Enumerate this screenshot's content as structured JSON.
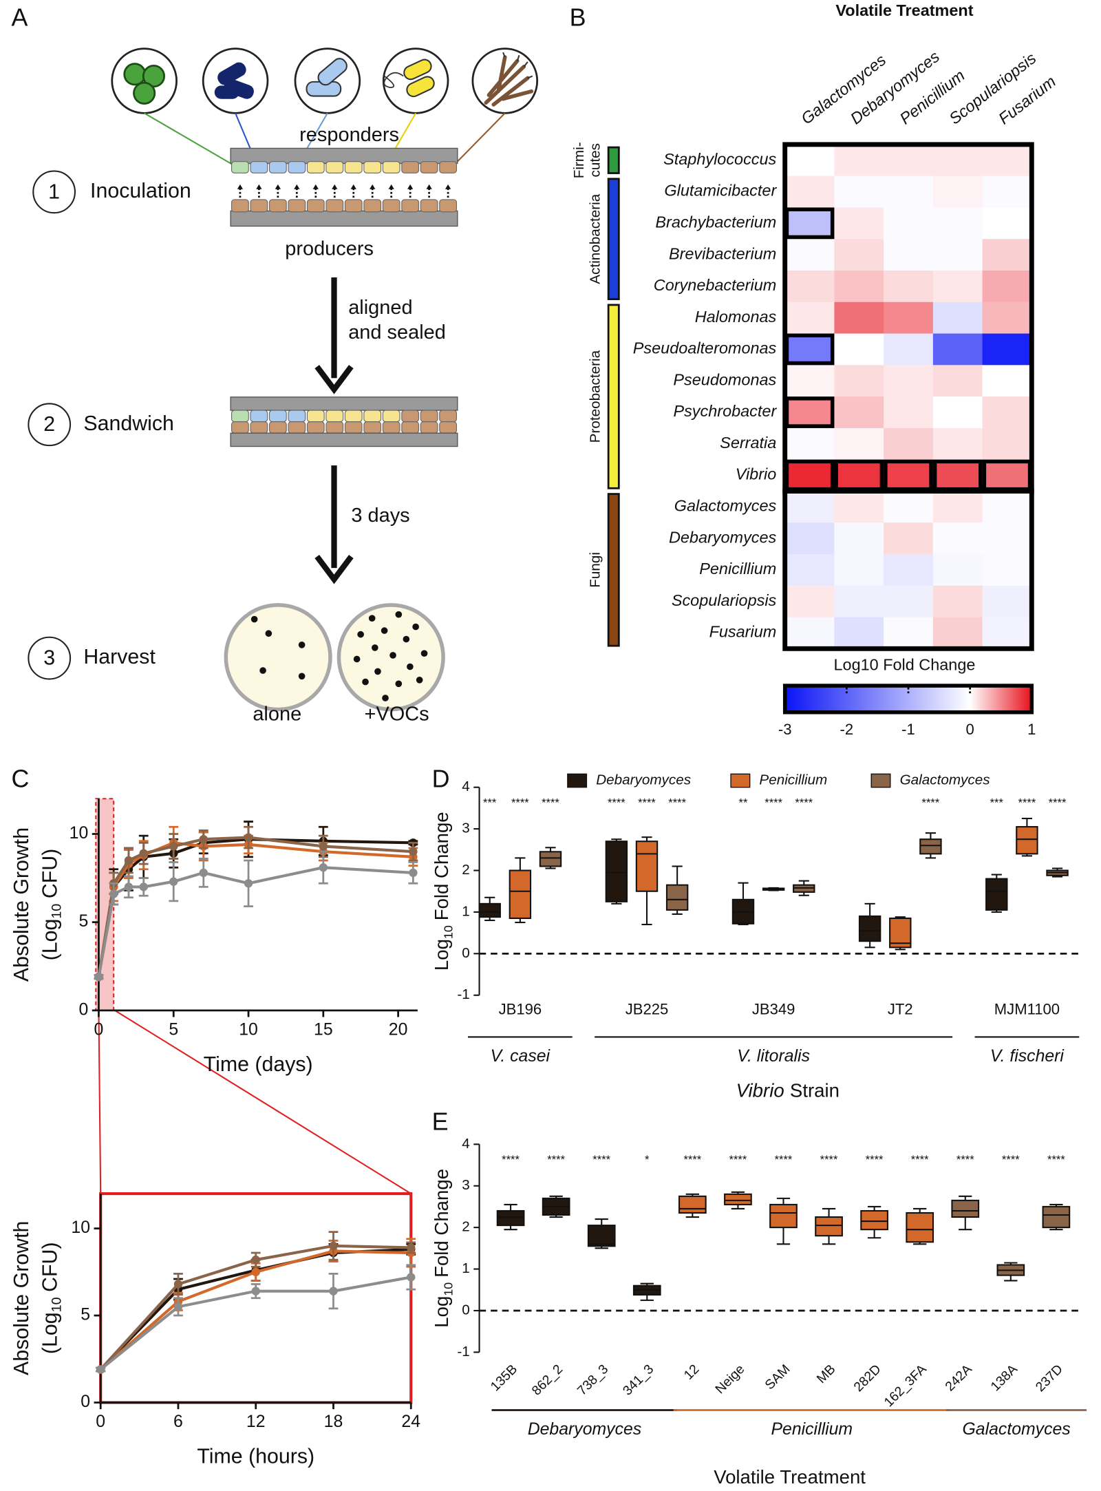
{
  "panel_labels": [
    "A",
    "B",
    "C",
    "D",
    "E"
  ],
  "diagram": {
    "responders": "responders",
    "producers": "producers",
    "steps": [
      {
        "number": "1",
        "label": "Inoculation"
      },
      {
        "number": "2",
        "label": "Sandwich"
      },
      {
        "number": "3",
        "label": "Harvest"
      }
    ],
    "transitions": [
      [
        "aligned",
        "and sealed"
      ],
      [
        "3 days"
      ]
    ],
    "plates": [
      "alone",
      "+VOCs"
    ]
  },
  "chart_data": [
    {
      "type": "heatmap",
      "title": "Volatile Treatment",
      "columns": [
        "Galactomyces",
        "Debaryomyces",
        "Penicillium",
        "Scopulariopsis",
        "Fusarium"
      ],
      "rows": [
        "Staphylococcus",
        "Glutamicibacter",
        "Brachybacterium",
        "Brevibacterium",
        "Corynebacterium",
        "Halomonas",
        "Pseudoalteromonas",
        "Pseudomonas",
        "Psychrobacter",
        "Serratia",
        "Vibrio",
        "Galactomyces",
        "Debaryomyces",
        "Penicillium",
        "Scopulariopsis",
        "Fusarium"
      ],
      "values": [
        [
          0,
          0.1,
          0.1,
          0.1,
          0.1
        ],
        [
          0.1,
          -0.05,
          -0.05,
          0.05,
          -0.05
        ],
        [
          -0.8,
          0.1,
          -0.05,
          -0.05,
          0
        ],
        [
          -0.05,
          0.15,
          -0.05,
          -0.05,
          0.2
        ],
        [
          0.15,
          0.25,
          0.15,
          0.1,
          0.35
        ],
        [
          0.1,
          0.6,
          0.5,
          -0.4,
          0.3
        ],
        [
          -1.7,
          0,
          -0.3,
          -2,
          -2.8
        ],
        [
          0.05,
          0.15,
          0.1,
          0.15,
          0
        ],
        [
          0.5,
          0.25,
          0.1,
          0,
          0.15
        ],
        [
          -0.05,
          0.05,
          0.2,
          0.1,
          0.15
        ],
        [
          0.9,
          0.85,
          0.8,
          0.75,
          0.6
        ],
        [
          -0.2,
          0.1,
          -0.05,
          0.1,
          -0.05
        ],
        [
          -0.4,
          -0.1,
          0.15,
          -0.05,
          -0.05
        ],
        [
          -0.3,
          -0.1,
          -0.3,
          -0.1,
          -0.05
        ],
        [
          0.1,
          -0.2,
          -0.2,
          0.15,
          -0.2
        ],
        [
          -0.1,
          -0.4,
          -0.05,
          0.2,
          -0.15
        ]
      ],
      "groups": [
        {
          "name": [
            "Firmi-",
            "cutes"
          ],
          "color": "#2e9b3c",
          "span": [
            0,
            0
          ]
        },
        {
          "name": [
            "Actinobacteria"
          ],
          "color": "#1a3fd8",
          "span": [
            1,
            4
          ]
        },
        {
          "name": [
            "Proteobacteria"
          ],
          "color": "#f5ee3a",
          "span": [
            5,
            10
          ]
        },
        {
          "name": [
            "Fungi"
          ],
          "color": "#8b4513",
          "span": [
            11,
            15
          ]
        }
      ],
      "outlined": [
        [
          2,
          0
        ],
        [
          6,
          0
        ],
        [
          8,
          0
        ],
        [
          10,
          0
        ],
        [
          10,
          1
        ],
        [
          10,
          2
        ],
        [
          10,
          3
        ],
        [
          10,
          4
        ]
      ],
      "colorscale": [
        {
          "value": -3,
          "color": "#0a14f5"
        },
        {
          "value": 0,
          "color": "#ffffff"
        },
        {
          "value": 1,
          "color": "#e8101c"
        }
      ],
      "colorbar": {
        "label": "Log10 Fold Change",
        "clim": [
          -3,
          1
        ],
        "ticks": [
          -3,
          -2,
          -1,
          0,
          1
        ]
      }
    },
    {
      "type": "line",
      "xlabel": "Time (days)",
      "ylabel": [
        "Absolute Growth",
        "(Log",
        "10",
        "CFU)"
      ],
      "x": [
        0,
        1,
        2,
        3,
        5,
        7,
        10,
        15,
        21
      ],
      "xlim": [
        0,
        21.3
      ],
      "xticks": [
        0,
        5,
        10,
        15,
        20
      ],
      "ylim": [
        0,
        12
      ],
      "yticks": [
        0,
        5,
        10
      ],
      "highlight_x": [
        0,
        1
      ],
      "series": [
        {
          "color": "#21170e",
          "values": [
            1.9,
            7.0,
            8.0,
            8.7,
            8.9,
            9.5,
            9.7,
            9.6,
            9.5
          ],
          "errors": [
            0.1,
            1.0,
            1.2,
            1.2,
            0.8,
            0.6,
            1.0,
            0.8,
            0.1
          ]
        },
        {
          "color": "#d2692a",
          "values": [
            1.9,
            7.0,
            8.3,
            8.8,
            9.5,
            9.3,
            9.4,
            9.0,
            8.7
          ],
          "errors": [
            0.1,
            0.8,
            0.8,
            0.8,
            0.9,
            0.8,
            0.5,
            0.5,
            0.5
          ]
        },
        {
          "color": "#8a6448",
          "values": [
            1.9,
            7.2,
            8.5,
            8.9,
            9.3,
            9.7,
            9.8,
            9.3,
            9.0
          ],
          "errors": [
            0.1,
            0.6,
            0.7,
            0.6,
            0.7,
            0.5,
            0.6,
            0.6,
            0.5
          ]
        },
        {
          "color": "#8c8c8c",
          "values": [
            1.9,
            6.6,
            7.0,
            7.0,
            7.3,
            7.8,
            7.2,
            8.1,
            7.8
          ],
          "errors": [
            0.1,
            0.6,
            0.6,
            0.5,
            1.1,
            0.8,
            1.3,
            0.9,
            0.6
          ]
        }
      ]
    },
    {
      "type": "line",
      "xlabel": "Time (hours)",
      "ylabel": [
        "Absolute Growth",
        "(Log",
        "10",
        "CFU)"
      ],
      "x": [
        0,
        6,
        12,
        18,
        24
      ],
      "xlim": [
        0,
        24
      ],
      "xticks": [
        0,
        6,
        12,
        18,
        24
      ],
      "ylim": [
        0,
        12
      ],
      "yticks": [
        0,
        5,
        10
      ],
      "series": [
        {
          "color": "#21170e",
          "values": [
            1.9,
            6.5,
            7.6,
            8.6,
            8.8
          ],
          "errors": [
            0.1,
            0.6,
            0.6,
            0.5,
            0.3
          ]
        },
        {
          "color": "#d2692a",
          "values": [
            1.9,
            5.8,
            7.5,
            8.7,
            8.6
          ],
          "errors": [
            0.1,
            0.5,
            0.5,
            0.6,
            0.8
          ]
        },
        {
          "color": "#8a6448",
          "values": [
            1.9,
            6.8,
            8.2,
            9.0,
            8.9
          ],
          "errors": [
            0.1,
            0.6,
            0.4,
            0.8,
            0.3
          ]
        },
        {
          "color": "#8c8c8c",
          "values": [
            1.9,
            5.5,
            6.4,
            6.4,
            7.2
          ],
          "errors": [
            0.1,
            0.5,
            0.4,
            1.0,
            0.7
          ]
        }
      ]
    },
    {
      "type": "box",
      "ylabel": [
        "Log",
        "10",
        "Fold Change"
      ],
      "xlabel": [
        "Vibrio",
        "Strain"
      ],
      "categories": [
        "JB196",
        "JB225",
        "JB349",
        "JT2",
        "MJM1100"
      ],
      "ylim": [
        -1,
        4
      ],
      "yticks": [
        -1,
        0,
        1,
        2,
        3,
        4
      ],
      "reference_line": 0,
      "series": [
        {
          "name": "Debaryomyces",
          "color": "#21170e",
          "values": [
            [
              0.8,
              0.88,
              1.0,
              1.2,
              1.35
            ],
            [
              1.2,
              1.25,
              1.95,
              2.7,
              2.75
            ],
            [
              0.7,
              0.72,
              1.0,
              1.3,
              1.7
            ],
            [
              0.15,
              0.3,
              0.55,
              0.9,
              1.2
            ],
            [
              1.0,
              1.05,
              1.5,
              1.8,
              1.9
            ]
          ],
          "stars": [
            "***",
            "****",
            "**",
            null,
            "***"
          ]
        },
        {
          "name": "Penicillium",
          "color": "#d2692a",
          "values": [
            [
              0.75,
              0.85,
              1.5,
              2.0,
              2.3
            ],
            [
              0.7,
              1.5,
              2.4,
              2.7,
              2.8
            ],
            [
              1.52,
              1.53,
              1.55,
              1.57,
              1.58
            ],
            [
              0.1,
              0.15,
              0.25,
              0.85,
              0.88
            ],
            [
              2.35,
              2.4,
              2.75,
              3.05,
              3.25
            ]
          ],
          "stars": [
            "****",
            "****",
            "****",
            null,
            "****"
          ]
        },
        {
          "name": "Galactomyces",
          "color": "#8a6448",
          "values": [
            [
              2.05,
              2.1,
              2.3,
              2.45,
              2.55
            ],
            [
              0.95,
              1.05,
              1.3,
              1.65,
              2.1
            ],
            [
              1.4,
              1.48,
              1.58,
              1.65,
              1.75
            ],
            [
              2.3,
              2.4,
              2.6,
              2.75,
              2.9
            ],
            [
              1.85,
              1.88,
              1.95,
              2.0,
              2.05
            ]
          ],
          "stars": [
            "****",
            "****",
            "****",
            "****",
            "****"
          ]
        }
      ],
      "brackets": [
        {
          "label": "V. casei",
          "span": [
            0,
            0
          ]
        },
        {
          "label": "V. litoralis",
          "span": [
            1,
            3
          ]
        },
        {
          "label": "V. fischeri",
          "span": [
            4,
            4
          ]
        }
      ]
    },
    {
      "type": "grouped_box",
      "ylabel": [
        "Log",
        "10",
        "Fold Change"
      ],
      "xlabel": "Volatile Treatment",
      "ylim": [
        -1,
        4
      ],
      "yticks": [
        -1,
        0,
        1,
        2,
        3,
        4
      ],
      "reference_line": 0,
      "series": [
        {
          "name": "Debaryomyces",
          "color": "#21170e",
          "categories": [
            "135B",
            "862_2",
            "738_3",
            "341_3"
          ],
          "values": [
            [
              1.95,
              2.05,
              2.25,
              2.4,
              2.55
            ],
            [
              2.25,
              2.3,
              2.5,
              2.7,
              2.75
            ],
            [
              1.5,
              1.55,
              1.6,
              2.05,
              2.2
            ],
            [
              0.25,
              0.38,
              0.5,
              0.6,
              0.65
            ]
          ],
          "stars": [
            "****",
            "****",
            "****",
            "*"
          ]
        },
        {
          "name": "Penicillium",
          "color": "#d2692a",
          "categories": [
            "12",
            "Neige",
            "SAM",
            "MB",
            "282D",
            "162_3FA"
          ],
          "values": [
            [
              2.25,
              2.35,
              2.45,
              2.75,
              2.8
            ],
            [
              2.45,
              2.55,
              2.65,
              2.8,
              2.85
            ],
            [
              1.6,
              2.0,
              2.35,
              2.55,
              2.7
            ],
            [
              1.6,
              1.8,
              2.05,
              2.25,
              2.45
            ],
            [
              1.75,
              1.95,
              2.15,
              2.4,
              2.5
            ],
            [
              1.6,
              1.65,
              1.95,
              2.35,
              2.45
            ]
          ],
          "stars": [
            "****",
            "****",
            "****",
            "****",
            "****",
            "****"
          ]
        },
        {
          "name": "Galactomyces",
          "color": "#8a6448",
          "categories": [
            "242A",
            "138A",
            "237D"
          ],
          "values": [
            [
              1.95,
              2.25,
              2.4,
              2.65,
              2.75
            ],
            [
              0.72,
              0.85,
              0.97,
              1.1,
              1.15
            ],
            [
              1.95,
              2.0,
              2.3,
              2.5,
              2.55
            ]
          ],
          "stars": [
            "****",
            "****",
            "****"
          ]
        }
      ]
    }
  ]
}
